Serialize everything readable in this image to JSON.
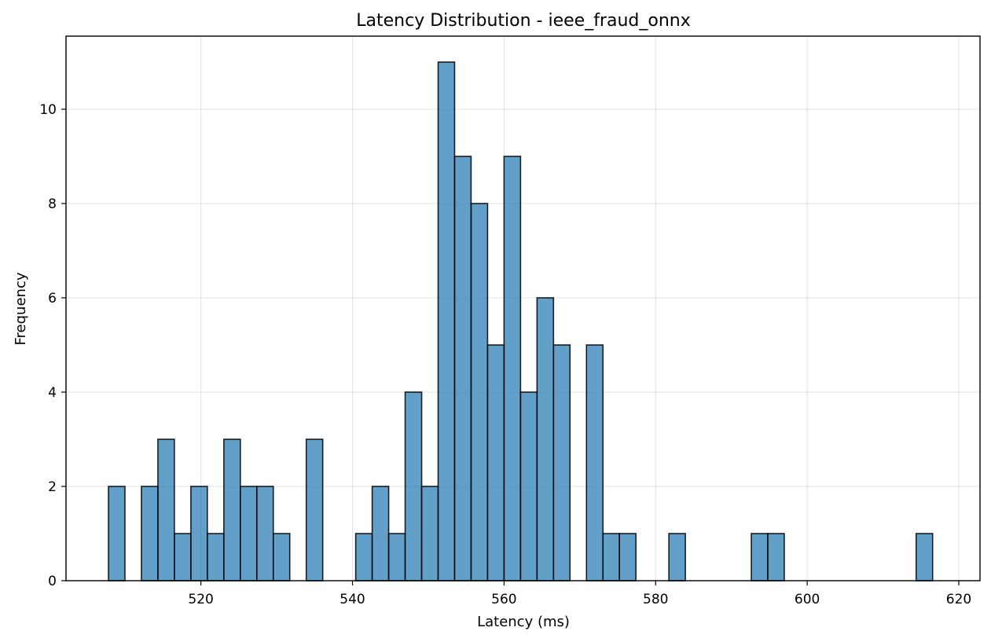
{
  "chart_data": {
    "type": "bar",
    "title": "Latency Distribution - ieee_fraud_onnx",
    "xlabel": "Latency (ms)",
    "ylabel": "Frequency",
    "xlim": [
      502.2,
      622.8
    ],
    "ylim": [
      0,
      11.55
    ],
    "bin_width": 2.175,
    "bins_start": 507.8,
    "counts": [
      2,
      0,
      2,
      3,
      1,
      2,
      1,
      3,
      2,
      2,
      1,
      0,
      3,
      0,
      0,
      1,
      2,
      1,
      4,
      2,
      11,
      9,
      8,
      5,
      9,
      4,
      6,
      5,
      0,
      5,
      1,
      1,
      0,
      0,
      1,
      0,
      0,
      0,
      0,
      1,
      1,
      0,
      0,
      0,
      0,
      0,
      0,
      0,
      0,
      1
    ],
    "xticks": [
      520,
      540,
      560,
      580,
      600,
      620
    ],
    "yticks": [
      0,
      2,
      4,
      6,
      8,
      10
    ],
    "grid": true,
    "bar_color": "#1f77b4",
    "edge_color": "#000000"
  }
}
